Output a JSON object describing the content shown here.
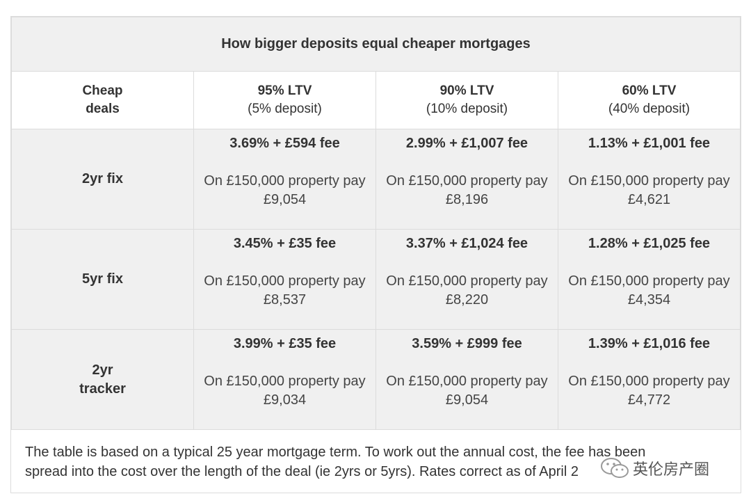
{
  "table": {
    "title": "How bigger deposits equal cheaper mortgages",
    "corner_label": [
      "Cheap",
      "deals"
    ],
    "columns": [
      {
        "ltv": "95% LTV",
        "deposit": "(5% deposit)"
      },
      {
        "ltv": "90% LTV",
        "deposit": "(10% deposit)"
      },
      {
        "ltv": "60% LTV",
        "deposit": "(40% deposit)"
      }
    ],
    "rows": [
      {
        "label": [
          "2yr fix"
        ],
        "cells": [
          {
            "rate": "3.69% + £594 fee",
            "pay_line1": "On £150,000 property pay",
            "pay_line2": "£9,054"
          },
          {
            "rate": "2.99% + £1,007 fee",
            "pay_line1": "On £150,000 property pay",
            "pay_line2": "£8,196"
          },
          {
            "rate": "1.13% + £1,001 fee",
            "pay_line1": "On £150,000 property pay",
            "pay_line2": "£4,621"
          }
        ]
      },
      {
        "label": [
          "5yr fix"
        ],
        "cells": [
          {
            "rate": "3.45% + £35 fee",
            "pay_line1": "On £150,000 property pay",
            "pay_line2": "£8,537"
          },
          {
            "rate": "3.37% + £1,024 fee",
            "pay_line1": "On £150,000 property pay",
            "pay_line2": "£8,220"
          },
          {
            "rate": "1.28% + £1,025 fee",
            "pay_line1": "On £150,000 property pay",
            "pay_line2": "£4,354"
          }
        ]
      },
      {
        "label": [
          "2yr",
          "tracker"
        ],
        "cells": [
          {
            "rate": "3.99% + £35 fee",
            "pay_line1": "On £150,000 property pay",
            "pay_line2": "£9,034"
          },
          {
            "rate": "3.59% + £999 fee",
            "pay_line1": "On £150,000 property pay",
            "pay_line2": "£9,054"
          },
          {
            "rate": "1.39% + £1,016 fee",
            "pay_line1": "On £150,000 property pay",
            "pay_line2": "£4,772"
          }
        ]
      }
    ],
    "footnote_line1": "The table is based on a typical 25 year mortgage term. To work out the annual cost, the fee has been",
    "footnote_line2": "spread into the cost over the length of the deal (ie 2yrs or 5yrs). Rates correct as of April 2"
  },
  "watermark": {
    "text": "英伦房产圈",
    "icon": "wechat-logo-icon"
  },
  "colors": {
    "header_bg": "#f0f0f0",
    "accent_rule": "#e8c23a",
    "border": "#dcdcdc"
  }
}
